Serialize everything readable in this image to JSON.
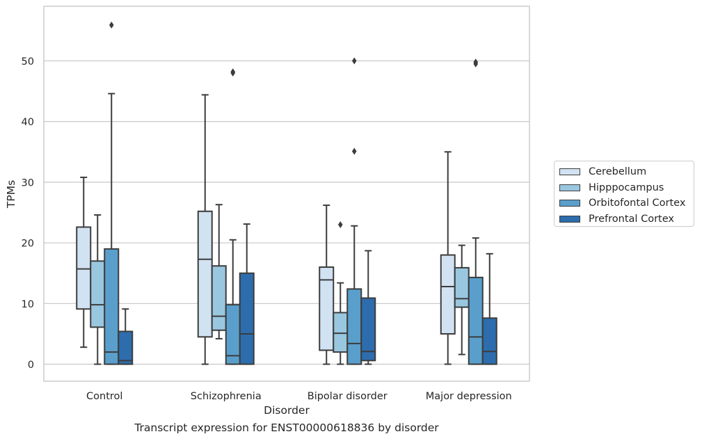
{
  "caption": "Transcript expression for ENST00000618836 by disorder",
  "chart_data": {
    "type": "boxplot",
    "xlabel": "Disorder",
    "ylabel": "TPMs",
    "ylim": [
      -2.8,
      59
    ],
    "yticks": [
      0,
      10,
      20,
      30,
      40,
      50
    ],
    "grid": "horizontal",
    "legend_position": "right",
    "categories": [
      "Control",
      "Schizophrenia",
      "Bipolar disorder",
      "Major depression"
    ],
    "series": [
      {
        "name": "Cerebellum",
        "color": "#d1e2f2",
        "boxes": [
          {
            "whisker_low": 2.8,
            "q1": 9.1,
            "median": 15.7,
            "q3": 22.6,
            "whisker_high": 30.8,
            "outliers": []
          },
          {
            "whisker_low": 0,
            "q1": 4.5,
            "median": 17.3,
            "q3": 25.2,
            "whisker_high": 44.4,
            "outliers": []
          },
          {
            "whisker_low": 0,
            "q1": 2.3,
            "median": 13.9,
            "q3": 16.0,
            "whisker_high": 26.2,
            "outliers": []
          },
          {
            "whisker_low": 0,
            "q1": 5.0,
            "median": 12.8,
            "q3": 18.0,
            "whisker_high": 35.0,
            "outliers": []
          }
        ]
      },
      {
        "name": "Hipppocampus",
        "color": "#9ac7e0",
        "boxes": [
          {
            "whisker_low": 0,
            "q1": 6.1,
            "median": 9.8,
            "q3": 17.0,
            "whisker_high": 24.6,
            "outliers": []
          },
          {
            "whisker_low": 4.2,
            "q1": 5.6,
            "median": 7.9,
            "q3": 16.2,
            "whisker_high": 26.3,
            "outliers": []
          },
          {
            "whisker_low": 0,
            "q1": 2.0,
            "median": 5.1,
            "q3": 8.5,
            "whisker_high": 13.4,
            "outliers": [
              23.0
            ]
          },
          {
            "whisker_low": 1.6,
            "q1": 9.4,
            "median": 10.8,
            "q3": 15.9,
            "whisker_high": 19.6,
            "outliers": []
          }
        ]
      },
      {
        "name": "Orbitofontal Cortex",
        "color": "#5a9fcc",
        "boxes": [
          {
            "whisker_low": 0,
            "q1": 0,
            "median": 2.0,
            "q3": 19.0,
            "whisker_high": 44.6,
            "outliers": [
              55.9
            ]
          },
          {
            "whisker_low": 0,
            "q1": 0,
            "median": 1.4,
            "q3": 9.8,
            "whisker_high": 20.5,
            "outliers": [
              48.0,
              48.2
            ]
          },
          {
            "whisker_low": 0,
            "q1": 0,
            "median": 3.4,
            "q3": 12.4,
            "whisker_high": 22.8,
            "outliers": [
              35.1,
              50.0
            ]
          },
          {
            "whisker_low": 0,
            "q1": 0,
            "median": 4.5,
            "q3": 14.3,
            "whisker_high": 20.8,
            "outliers": [
              49.5,
              49.8
            ]
          }
        ]
      },
      {
        "name": "Prefrontal Cortex",
        "color": "#2d6dad",
        "boxes": [
          {
            "whisker_low": 0,
            "q1": 0,
            "median": 0.6,
            "q3": 5.4,
            "whisker_high": 9.1,
            "outliers": []
          },
          {
            "whisker_low": 0,
            "q1": 0,
            "median": 5.0,
            "q3": 15.0,
            "whisker_high": 23.1,
            "outliers": []
          },
          {
            "whisker_low": 0,
            "q1": 0.6,
            "median": 2.1,
            "q3": 10.9,
            "whisker_high": 18.7,
            "outliers": []
          },
          {
            "whisker_low": 0,
            "q1": 0,
            "median": 2.1,
            "q3": 7.6,
            "whisker_high": 18.2,
            "outliers": []
          }
        ]
      }
    ]
  }
}
